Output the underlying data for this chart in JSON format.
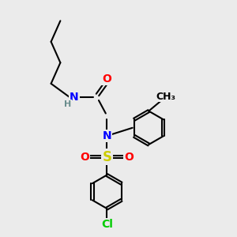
{
  "bg_color": "#ebebeb",
  "bond_color": "#000000",
  "bond_width": 1.5,
  "atom_colors": {
    "N": "#0000ff",
    "O": "#ff0000",
    "S": "#cccc00",
    "Cl": "#00cc00",
    "H": "#6b8e8e",
    "C": "#000000"
  },
  "font_size_atom": 10,
  "font_size_small": 8,
  "xlim": [
    0,
    10
  ],
  "ylim": [
    0,
    10
  ]
}
